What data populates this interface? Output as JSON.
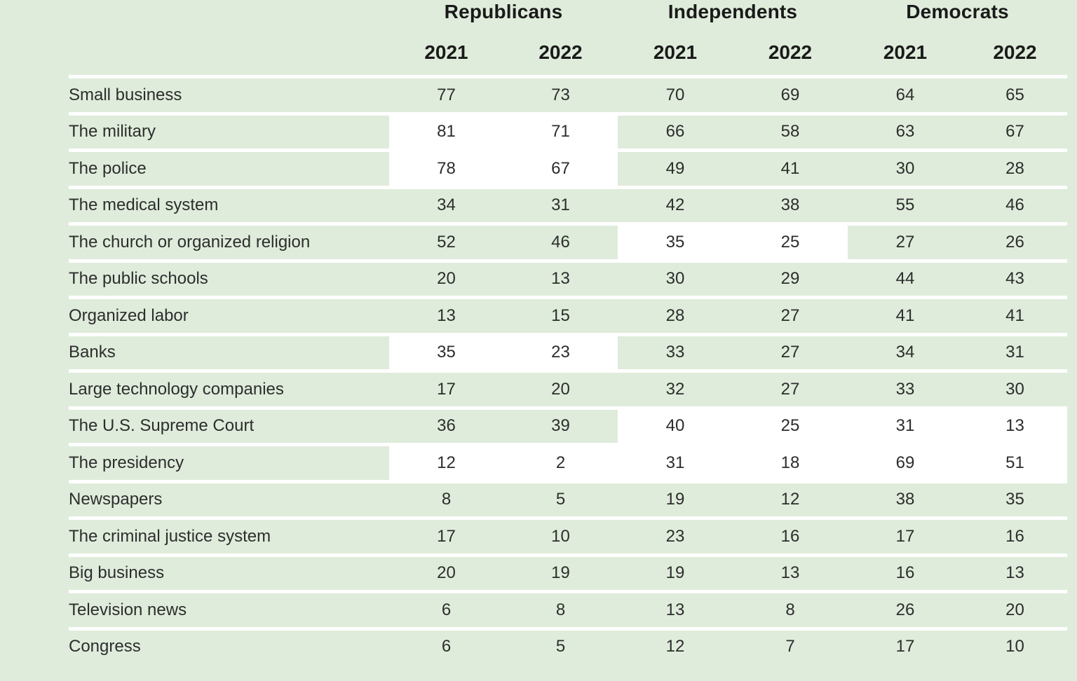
{
  "colors": {
    "page_background": "#dfecdb",
    "highlight_cell": "#ffffff",
    "row_separator": "#ffffff",
    "body_text": "#2d2d2d",
    "header_text": "#1a1a1a"
  },
  "chart_data": {
    "type": "table",
    "group_headers": [
      "Republicans",
      "Independents",
      "Democrats"
    ],
    "year_headers": [
      "2021",
      "2022",
      "2021",
      "2022",
      "2021",
      "2022"
    ],
    "rows": [
      {
        "label": "Small business",
        "values": [
          77,
          73,
          70,
          69,
          64,
          65
        ],
        "highlighted_cols": []
      },
      {
        "label": "The military",
        "values": [
          81,
          71,
          66,
          58,
          63,
          67
        ],
        "highlighted_cols": [
          0,
          1
        ]
      },
      {
        "label": "The police",
        "values": [
          78,
          67,
          49,
          41,
          30,
          28
        ],
        "highlighted_cols": [
          0,
          1
        ]
      },
      {
        "label": "The medical system",
        "values": [
          34,
          31,
          42,
          38,
          55,
          46
        ],
        "highlighted_cols": []
      },
      {
        "label": "The church or organized religion",
        "values": [
          52,
          46,
          35,
          25,
          27,
          26
        ],
        "highlighted_cols": [
          2,
          3
        ]
      },
      {
        "label": "The public schools",
        "values": [
          20,
          13,
          30,
          29,
          44,
          43
        ],
        "highlighted_cols": []
      },
      {
        "label": "Organized labor",
        "values": [
          13,
          15,
          28,
          27,
          41,
          41
        ],
        "highlighted_cols": []
      },
      {
        "label": "Banks",
        "values": [
          35,
          23,
          33,
          27,
          34,
          31
        ],
        "highlighted_cols": [
          0,
          1
        ]
      },
      {
        "label": "Large technology companies",
        "values": [
          17,
          20,
          32,
          27,
          33,
          30
        ],
        "highlighted_cols": []
      },
      {
        "label": "The U.S. Supreme Court",
        "values": [
          36,
          39,
          40,
          25,
          31,
          13
        ],
        "highlighted_cols": [
          2,
          3,
          4,
          5
        ]
      },
      {
        "label": "The presidency",
        "values": [
          12,
          2,
          31,
          18,
          69,
          51
        ],
        "highlighted_cols": [
          0,
          1,
          2,
          3,
          4,
          5
        ]
      },
      {
        "label": "Newspapers",
        "values": [
          8,
          5,
          19,
          12,
          38,
          35
        ],
        "highlighted_cols": []
      },
      {
        "label": "The criminal justice system",
        "values": [
          17,
          10,
          23,
          16,
          17,
          16
        ],
        "highlighted_cols": []
      },
      {
        "label": "Big business",
        "values": [
          20,
          19,
          19,
          13,
          16,
          13
        ],
        "highlighted_cols": []
      },
      {
        "label": "Television news",
        "values": [
          6,
          8,
          13,
          8,
          26,
          20
        ],
        "highlighted_cols": []
      },
      {
        "label": "Congress",
        "values": [
          6,
          5,
          12,
          7,
          17,
          10
        ],
        "highlighted_cols": []
      }
    ]
  }
}
